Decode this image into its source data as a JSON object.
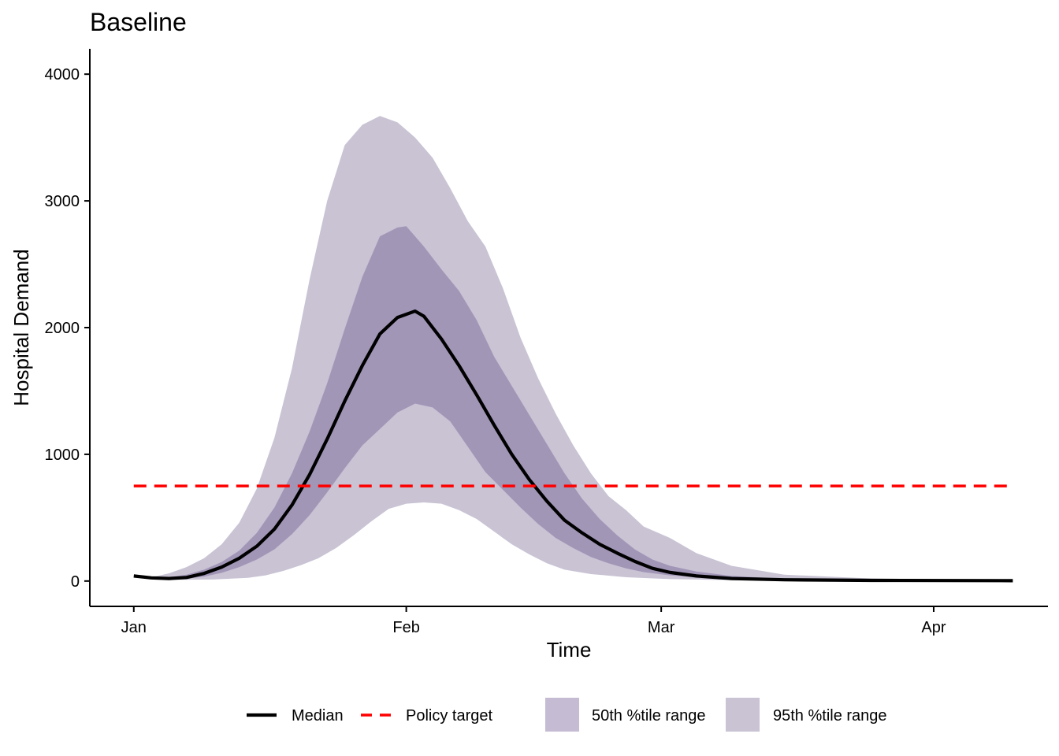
{
  "chart_data": {
    "type": "line",
    "title": "Baseline",
    "xlabel": "Time",
    "ylabel": "Hospital Demand",
    "x_start": "2020-01-01",
    "x_ticks": [
      {
        "date": "2020-01-01",
        "label": "Jan"
      },
      {
        "date": "2020-02-01",
        "label": "Feb"
      },
      {
        "date": "2020-03-01",
        "label": "Mar"
      },
      {
        "date": "2020-04-01",
        "label": "Apr"
      }
    ],
    "xlim": [
      "2019-12-27",
      "2020-04-14"
    ],
    "ylim": [
      -200,
      4200
    ],
    "y_ticks": [
      0,
      1000,
      2000,
      3000,
      4000
    ],
    "grid": false,
    "legend_position": "bottom",
    "series": [
      {
        "name": "Median",
        "style": "solid",
        "color": "#000000",
        "points": [
          [
            "2020-01-01",
            40
          ],
          [
            "2020-01-03",
            25
          ],
          [
            "2020-01-05",
            20
          ],
          [
            "2020-01-07",
            28
          ],
          [
            "2020-01-09",
            60
          ],
          [
            "2020-01-11",
            110
          ],
          [
            "2020-01-13",
            180
          ],
          [
            "2020-01-15",
            275
          ],
          [
            "2020-01-17",
            410
          ],
          [
            "2020-01-19",
            600
          ],
          [
            "2020-01-21",
            840
          ],
          [
            "2020-01-23",
            1120
          ],
          [
            "2020-01-25",
            1420
          ],
          [
            "2020-01-27",
            1700
          ],
          [
            "2020-01-29",
            1950
          ],
          [
            "2020-01-31",
            2080
          ],
          [
            "2020-02-02",
            2130
          ],
          [
            "2020-02-03",
            2090
          ],
          [
            "2020-02-05",
            1910
          ],
          [
            "2020-02-07",
            1700
          ],
          [
            "2020-02-09",
            1470
          ],
          [
            "2020-02-11",
            1230
          ],
          [
            "2020-02-13",
            1000
          ],
          [
            "2020-02-15",
            800
          ],
          [
            "2020-02-17",
            630
          ],
          [
            "2020-02-19",
            480
          ],
          [
            "2020-02-21",
            380
          ],
          [
            "2020-02-23",
            290
          ],
          [
            "2020-02-25",
            220
          ],
          [
            "2020-02-27",
            155
          ],
          [
            "2020-02-29",
            100
          ],
          [
            "2020-03-02",
            68
          ],
          [
            "2020-03-05",
            40
          ],
          [
            "2020-03-09",
            20
          ],
          [
            "2020-03-15",
            10
          ],
          [
            "2020-03-25",
            5
          ],
          [
            "2020-04-10",
            3
          ]
        ]
      },
      {
        "name": "Policy target",
        "style": "dashed",
        "color": "#ff0000",
        "points": [
          [
            "2020-01-01",
            750
          ],
          [
            "2020-04-10",
            750
          ]
        ]
      }
    ],
    "bands": [
      {
        "name": "50th %tile range",
        "color": "#c5bbd3",
        "upper": [
          [
            "2020-01-01",
            40
          ],
          [
            "2020-01-03",
            30
          ],
          [
            "2020-01-05",
            30
          ],
          [
            "2020-01-07",
            50
          ],
          [
            "2020-01-09",
            90
          ],
          [
            "2020-01-11",
            150
          ],
          [
            "2020-01-13",
            240
          ],
          [
            "2020-01-15",
            380
          ],
          [
            "2020-01-17",
            580
          ],
          [
            "2020-01-19",
            850
          ],
          [
            "2020-01-21",
            1180
          ],
          [
            "2020-01-23",
            1560
          ],
          [
            "2020-01-25",
            1990
          ],
          [
            "2020-01-27",
            2400
          ],
          [
            "2020-01-29",
            2720
          ],
          [
            "2020-01-31",
            2790
          ],
          [
            "2020-02-01",
            2800
          ],
          [
            "2020-02-03",
            2640
          ],
          [
            "2020-02-05",
            2460
          ],
          [
            "2020-02-07",
            2290
          ],
          [
            "2020-02-09",
            2060
          ],
          [
            "2020-02-11",
            1770
          ],
          [
            "2020-02-13",
            1540
          ],
          [
            "2020-02-15",
            1310
          ],
          [
            "2020-02-17",
            1080
          ],
          [
            "2020-02-19",
            850
          ],
          [
            "2020-02-21",
            650
          ],
          [
            "2020-02-23",
            490
          ],
          [
            "2020-02-25",
            360
          ],
          [
            "2020-02-27",
            250
          ],
          [
            "2020-02-29",
            170
          ],
          [
            "2020-03-02",
            120
          ],
          [
            "2020-03-05",
            75
          ],
          [
            "2020-03-09",
            40
          ],
          [
            "2020-03-15",
            18
          ],
          [
            "2020-03-25",
            8
          ],
          [
            "2020-04-10",
            5
          ]
        ],
        "lower": [
          [
            "2020-01-01",
            40
          ],
          [
            "2020-01-03",
            22
          ],
          [
            "2020-01-05",
            15
          ],
          [
            "2020-01-07",
            18
          ],
          [
            "2020-01-09",
            35
          ],
          [
            "2020-01-11",
            65
          ],
          [
            "2020-01-13",
            110
          ],
          [
            "2020-01-15",
            170
          ],
          [
            "2020-01-17",
            250
          ],
          [
            "2020-01-19",
            370
          ],
          [
            "2020-01-21",
            520
          ],
          [
            "2020-01-23",
            700
          ],
          [
            "2020-01-25",
            890
          ],
          [
            "2020-01-27",
            1070
          ],
          [
            "2020-01-29",
            1200
          ],
          [
            "2020-01-31",
            1330
          ],
          [
            "2020-02-02",
            1400
          ],
          [
            "2020-02-04",
            1370
          ],
          [
            "2020-02-06",
            1260
          ],
          [
            "2020-02-08",
            1060
          ],
          [
            "2020-02-10",
            860
          ],
          [
            "2020-02-12",
            720
          ],
          [
            "2020-02-14",
            580
          ],
          [
            "2020-02-16",
            450
          ],
          [
            "2020-02-18",
            340
          ],
          [
            "2020-02-20",
            260
          ],
          [
            "2020-02-22",
            190
          ],
          [
            "2020-02-24",
            140
          ],
          [
            "2020-02-26",
            100
          ],
          [
            "2020-02-28",
            70
          ],
          [
            "2020-03-02",
            45
          ],
          [
            "2020-03-06",
            25
          ],
          [
            "2020-03-12",
            12
          ],
          [
            "2020-03-22",
            5
          ],
          [
            "2020-04-10",
            2
          ]
        ]
      },
      {
        "name": "95th %tile range",
        "color": "#c9c3d4",
        "upper": [
          [
            "2020-01-01",
            40
          ],
          [
            "2020-01-03",
            30
          ],
          [
            "2020-01-05",
            60
          ],
          [
            "2020-01-07",
            110
          ],
          [
            "2020-01-09",
            180
          ],
          [
            "2020-01-11",
            290
          ],
          [
            "2020-01-13",
            460
          ],
          [
            "2020-01-15",
            730
          ],
          [
            "2020-01-17",
            1130
          ],
          [
            "2020-01-19",
            1680
          ],
          [
            "2020-01-21",
            2380
          ],
          [
            "2020-01-23",
            3000
          ],
          [
            "2020-01-25",
            3440
          ],
          [
            "2020-01-27",
            3600
          ],
          [
            "2020-01-29",
            3670
          ],
          [
            "2020-01-31",
            3620
          ],
          [
            "2020-02-02",
            3500
          ],
          [
            "2020-02-04",
            3340
          ],
          [
            "2020-02-06",
            3100
          ],
          [
            "2020-02-08",
            2840
          ],
          [
            "2020-02-10",
            2640
          ],
          [
            "2020-02-12",
            2310
          ],
          [
            "2020-02-14",
            1920
          ],
          [
            "2020-02-16",
            1600
          ],
          [
            "2020-02-18",
            1320
          ],
          [
            "2020-02-20",
            1070
          ],
          [
            "2020-02-22",
            850
          ],
          [
            "2020-02-24",
            670
          ],
          [
            "2020-02-26",
            560
          ],
          [
            "2020-02-28",
            430
          ],
          [
            "2020-03-02",
            340
          ],
          [
            "2020-03-05",
            220
          ],
          [
            "2020-03-09",
            120
          ],
          [
            "2020-03-15",
            50
          ],
          [
            "2020-03-25",
            20
          ],
          [
            "2020-04-10",
            8
          ]
        ],
        "lower": [
          [
            "2020-01-01",
            40
          ],
          [
            "2020-01-03",
            15
          ],
          [
            "2020-01-06",
            10
          ],
          [
            "2020-01-10",
            12
          ],
          [
            "2020-01-14",
            25
          ],
          [
            "2020-01-16",
            45
          ],
          [
            "2020-01-18",
            80
          ],
          [
            "2020-01-20",
            125
          ],
          [
            "2020-01-22",
            180
          ],
          [
            "2020-01-24",
            260
          ],
          [
            "2020-01-26",
            360
          ],
          [
            "2020-01-28",
            470
          ],
          [
            "2020-01-30",
            570
          ],
          [
            "2020-02-01",
            610
          ],
          [
            "2020-02-03",
            620
          ],
          [
            "2020-02-05",
            610
          ],
          [
            "2020-02-07",
            560
          ],
          [
            "2020-02-09",
            490
          ],
          [
            "2020-02-11",
            390
          ],
          [
            "2020-02-13",
            290
          ],
          [
            "2020-02-15",
            210
          ],
          [
            "2020-02-17",
            140
          ],
          [
            "2020-02-19",
            90
          ],
          [
            "2020-02-22",
            55
          ],
          [
            "2020-02-26",
            30
          ],
          [
            "2020-03-02",
            15
          ],
          [
            "2020-03-10",
            6
          ],
          [
            "2020-04-10",
            2
          ]
        ]
      }
    ],
    "legend": [
      {
        "label": "Median",
        "kind": "line-solid",
        "color": "#000000"
      },
      {
        "label": "Policy target",
        "kind": "line-dashed",
        "color": "#ff0000"
      },
      {
        "label": "50th %tile range",
        "kind": "fill",
        "color": "#c5bbd3"
      },
      {
        "label": "95th %tile range",
        "kind": "fill",
        "color": "#c9c3d4"
      }
    ]
  }
}
